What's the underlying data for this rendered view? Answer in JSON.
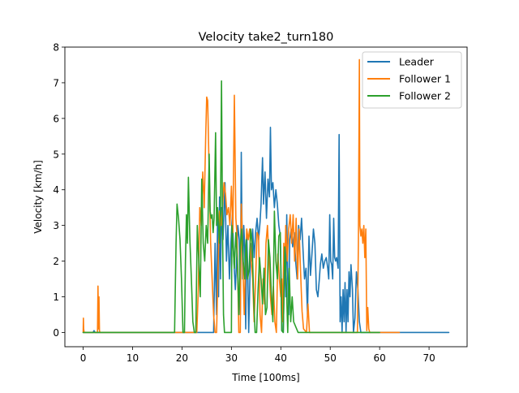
{
  "chart_data": {
    "type": "line",
    "title": "Velocity take2_turn180",
    "xlabel": "Time [100ms]",
    "ylabel": "Velocity [km/h]",
    "xlim": [
      -3.7,
      77.7
    ],
    "ylim": [
      -0.4,
      8.0
    ],
    "xticks": [
      0,
      10,
      20,
      30,
      40,
      50,
      60,
      70
    ],
    "yticks": [
      0,
      1,
      2,
      3,
      4,
      5,
      6,
      7,
      8
    ],
    "grid": false,
    "legend_position": "top-right",
    "series": [
      {
        "name": "Leader",
        "color": "#1f77b4",
        "x": [
          0,
          2,
          2.2,
          2.4,
          2.6,
          25,
          26.4,
          26.7,
          27.0,
          27.2,
          27.4,
          27.6,
          27.8,
          28.0,
          28.3,
          28.7,
          29.0,
          29.3,
          29.6,
          29.9,
          30.2,
          30.5,
          30.8,
          31.1,
          31.3,
          31.6,
          31.8,
          32.0,
          32.1,
          32.3,
          32.5,
          32.7,
          32.9,
          33.1,
          33.3,
          33.5,
          33.7,
          33.9,
          34.1,
          34.3,
          34.6,
          34.9,
          35.2,
          35.5,
          35.8,
          36.0,
          36.3,
          36.5,
          36.8,
          37.1,
          37.4,
          37.7,
          37.9,
          38.1,
          38.4,
          38.7,
          39.0,
          39.3,
          39.6,
          39.9,
          40.2,
          40.5,
          40.8,
          41.0,
          41.2,
          41.4,
          41.6,
          41.8,
          42.1,
          42.4,
          42.7,
          43.0,
          43.3,
          43.6,
          43.9,
          44.2,
          44.5,
          44.8,
          45.1,
          45.4,
          45.7,
          46.0,
          46.3,
          46.6,
          46.9,
          47.2,
          47.5,
          47.8,
          48.0,
          48.3,
          48.6,
          48.9,
          49.2,
          49.5,
          49.7,
          49.9,
          50.1,
          50.3,
          50.5,
          50.7,
          50.9,
          51.1,
          51.3,
          51.6,
          51.8,
          52.0,
          52.2,
          52.4,
          52.6,
          52.8,
          53.0,
          53.2,
          53.4,
          53.6,
          53.8,
          54.0,
          54.2,
          54.5,
          54.7,
          55.0,
          55.3,
          55.6,
          55.9,
          56.2,
          74
        ],
        "y": [
          0,
          0,
          0.05,
          0,
          0,
          0,
          0,
          2.5,
          0.5,
          3.2,
          1.0,
          3.8,
          1.5,
          3.5,
          2.6,
          4.2,
          2.0,
          3.0,
          1.5,
          2.5,
          3.3,
          2.0,
          1.2,
          2.2,
          3.0,
          2.6,
          0.5,
          5.05,
          3.5,
          1.5,
          3.0,
          2.4,
          0.1,
          2.8,
          1.8,
          0,
          1.2,
          2.5,
          2.0,
          2.9,
          2.1,
          2.8,
          3.2,
          2.6,
          3.1,
          3.6,
          4.9,
          3.6,
          4.5,
          3.2,
          4.3,
          3.8,
          5.75,
          4.0,
          4.2,
          3.5,
          4.0,
          3.6,
          3.0,
          2.7,
          0.05,
          0,
          2.3,
          1.0,
          3.3,
          1.5,
          0.5,
          2.6,
          2.9,
          2.4,
          2.8,
          2.0,
          1.5,
          3.0,
          2.6,
          3.2,
          2.3,
          1.5,
          1.8,
          0.5,
          2.7,
          1.6,
          2.2,
          2.9,
          2.5,
          1.2,
          1.0,
          1.5,
          1.9,
          2.2,
          1.8,
          2.0,
          2.1,
          1.8,
          1.5,
          3.3,
          2.0,
          1.9,
          1.5,
          3.2,
          2.1,
          2.0,
          2.1,
          1.8,
          5.55,
          0.3,
          1.0,
          0,
          1.2,
          0.3,
          1.4,
          0,
          1.2,
          0.3,
          1.7,
          1.0,
          1.9,
          1.2,
          0,
          0.4,
          1.7,
          1.2,
          0.3,
          0,
          0
        ]
      },
      {
        "name": "Follower 1",
        "color": "#ff7f0e",
        "x": [
          0,
          0.05,
          0.1,
          0.2,
          2.9,
          3.0,
          3.1,
          3.2,
          3.3,
          3.4,
          3.5,
          3.6,
          23,
          23.3,
          23.6,
          23.9,
          24.2,
          24.5,
          24.8,
          25.0,
          25.2,
          25.5,
          25.8,
          26.1,
          26.4,
          26.7,
          27.0,
          27.3,
          27.6,
          27.9,
          28.2,
          28.5,
          28.8,
          29.1,
          29.4,
          29.7,
          30.0,
          30.3,
          30.6,
          30.9,
          31.1,
          31.3,
          31.5,
          31.8,
          32.0,
          32.2,
          32.4,
          32.6,
          32.8,
          33.1,
          33.4,
          33.7,
          34.0,
          34.3,
          34.6,
          34.9,
          35.2,
          35.5,
          35.8,
          36.1,
          36.4,
          36.7,
          37.0,
          37.3,
          37.6,
          37.9,
          38.2,
          38.5,
          38.8,
          39.1,
          39.4,
          39.7,
          40.0,
          40.2,
          40.4,
          40.6,
          40.8,
          41.0,
          41.3,
          41.6,
          41.9,
          42.2,
          42.5,
          42.8,
          43.1,
          43.4,
          43.7,
          44.0,
          44.3,
          44.6,
          44.9,
          45.2,
          45.5,
          45.8,
          46.1,
          46.4,
          46.7,
          47.0,
          47.3,
          47.6,
          47.9,
          48.2,
          48.5,
          55.5,
          55.7,
          55.9,
          56.0,
          56.2,
          56.4,
          56.6,
          56.8,
          57.0,
          57.2,
          57.4,
          57.6,
          57.8,
          58.0,
          58.2,
          58.5,
          58.8,
          64
        ],
        "y": [
          0,
          0.4,
          0.1,
          0,
          0,
          1.3,
          0.1,
          1.0,
          0.05,
          0,
          0,
          0,
          0,
          1.2,
          3.5,
          3.0,
          4.5,
          3.5,
          5.5,
          6.6,
          6.5,
          4.5,
          2.5,
          1.5,
          0.5,
          0,
          0,
          1.8,
          3.4,
          3.0,
          3.5,
          4.2,
          3.9,
          3.3,
          3.5,
          3.0,
          4.1,
          2.8,
          6.65,
          3.2,
          2.8,
          1.5,
          0,
          0,
          3.6,
          2.8,
          1.5,
          0.5,
          1.7,
          2.9,
          2.6,
          2.9,
          2.0,
          1.5,
          0.3,
          1.5,
          2.8,
          2.7,
          0.5,
          0,
          1.5,
          0.8,
          2.5,
          3.0,
          2.0,
          1.0,
          0.5,
          1.3,
          0.3,
          0,
          2.2,
          1.5,
          1.0,
          1.5,
          0.3,
          2.5,
          1.8,
          3.0,
          2.0,
          2.9,
          3.3,
          2.5,
          3.3,
          2.0,
          3.2,
          1.5,
          2.9,
          1.7,
          0.6,
          0.1,
          0.05,
          0,
          0.8,
          0,
          0,
          0,
          0,
          0,
          0,
          0,
          0,
          0,
          0,
          0,
          2.5,
          7.65,
          3.0,
          2.7,
          2.9,
          2.5,
          3.0,
          2.1,
          2.9,
          0.05,
          0.7,
          0.1,
          0,
          0,
          0,
          0,
          0
        ]
      },
      {
        "name": "Follower 2",
        "color": "#2ca02c",
        "x": [
          0,
          18.5,
          18.8,
          19.0,
          19.3,
          19.6,
          19.9,
          20.2,
          20.5,
          20.7,
          20.9,
          21.1,
          21.3,
          21.6,
          21.9,
          22.2,
          22.5,
          22.8,
          23.1,
          23.4,
          23.7,
          24.0,
          24.3,
          24.6,
          24.9,
          25.2,
          25.5,
          25.7,
          25.9,
          26.1,
          26.3,
          26.5,
          26.8,
          27.0,
          27.2,
          27.4,
          27.6,
          27.8,
          28.0,
          28.2,
          28.4,
          28.6,
          28.8,
          29.0,
          29.2,
          29.5,
          30.0,
          30.1,
          30.3,
          30.6,
          30.9,
          31.2,
          31.5,
          31.8,
          32.1,
          32.4,
          32.7,
          33.0,
          33.3,
          33.6,
          33.9,
          34.2,
          34.5,
          34.8,
          35.1,
          35.4,
          35.7,
          36.0,
          36.3,
          36.6,
          36.9,
          37.2,
          37.5,
          37.8,
          38.1,
          38.4,
          38.7,
          39.0,
          39.3,
          39.6,
          39.9,
          40.2,
          40.5,
          40.8,
          41.1,
          41.4,
          41.7,
          42.0,
          42.3,
          42.6,
          43.5,
          60
        ],
        "y": [
          0,
          0,
          2.5,
          3.6,
          3.2,
          2.6,
          1.5,
          0,
          0,
          2.0,
          3.3,
          2.5,
          4.35,
          2.6,
          1.5,
          0.3,
          0,
          0,
          3.0,
          2.0,
          1.0,
          4.3,
          2.5,
          2.0,
          3.0,
          2.5,
          5.0,
          3.4,
          3.2,
          3.3,
          2.8,
          3.2,
          5.6,
          3.0,
          3.5,
          3.0,
          2.5,
          3.5,
          7.05,
          3.0,
          0.5,
          0,
          0,
          0,
          0,
          0,
          0,
          3.0,
          2.5,
          1.8,
          2.8,
          2.0,
          0.5,
          2.4,
          2.9,
          2.0,
          1.5,
          2.6,
          1.5,
          1.8,
          2.9,
          2.5,
          1.0,
          0,
          0,
          1.2,
          2.1,
          1.5,
          0.8,
          1.8,
          0.5,
          0.7,
          2.6,
          2.1,
          1.0,
          0.3,
          3.4,
          2.0,
          1.5,
          2.7,
          2.8,
          0.05,
          0,
          2.4,
          1.5,
          0,
          1.8,
          0.3,
          1.0,
          0.3,
          0,
          0
        ]
      }
    ]
  }
}
